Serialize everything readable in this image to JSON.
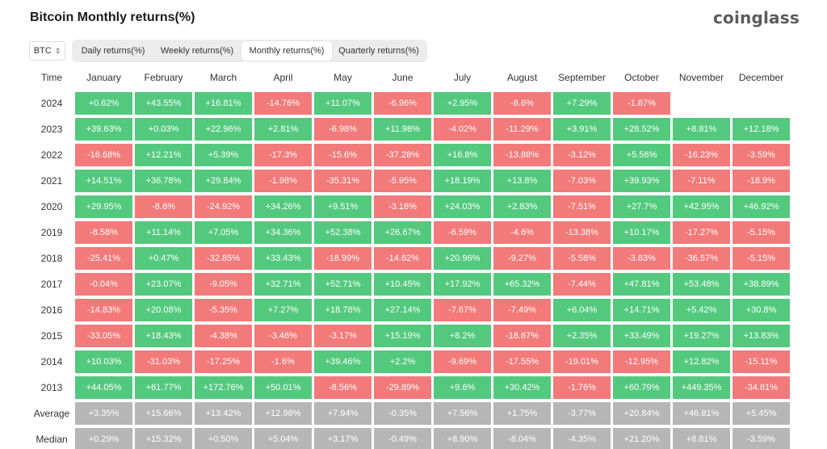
{
  "title": "Bitcoin Monthly returns(%)",
  "logo": "coinglass",
  "selector": {
    "value": "BTC"
  },
  "tabs": [
    {
      "label": "Daily returns(%)",
      "active": false
    },
    {
      "label": "Weekly returns(%)",
      "active": false
    },
    {
      "label": "Monthly returns(%)",
      "active": true
    },
    {
      "label": "Quarterly returns(%)",
      "active": false
    }
  ],
  "colors": {
    "positive": "#53c97e",
    "negative": "#f37a7a",
    "stat": "#b6b6b6"
  },
  "table": {
    "time_header": "Time",
    "months": [
      "January",
      "February",
      "March",
      "April",
      "May",
      "June",
      "July",
      "August",
      "September",
      "October",
      "November",
      "December"
    ],
    "rows": [
      {
        "year": "2024",
        "values": [
          "+0.62%",
          "+43.55%",
          "+16.81%",
          "-14.76%",
          "+11.07%",
          "-6.96%",
          "+2.95%",
          "-8.6%",
          "+7.29%",
          "-1.87%",
          "",
          ""
        ]
      },
      {
        "year": "2023",
        "values": [
          "+39.63%",
          "+0.03%",
          "+22.96%",
          "+2.81%",
          "-6.98%",
          "+11.98%",
          "-4.02%",
          "-11.29%",
          "+3.91%",
          "+28.52%",
          "+8.81%",
          "+12.18%"
        ]
      },
      {
        "year": "2022",
        "values": [
          "-16.68%",
          "+12.21%",
          "+5.39%",
          "-17.3%",
          "-15.6%",
          "-37.28%",
          "+16.8%",
          "-13.88%",
          "-3.12%",
          "+5.56%",
          "-16.23%",
          "-3.59%"
        ]
      },
      {
        "year": "2021",
        "values": [
          "+14.51%",
          "+36.78%",
          "+29.84%",
          "-1.98%",
          "-35.31%",
          "-5.95%",
          "+18.19%",
          "+13.8%",
          "-7.03%",
          "+39.93%",
          "-7.11%",
          "-18.9%"
        ]
      },
      {
        "year": "2020",
        "values": [
          "+29.95%",
          "-8.6%",
          "-24.92%",
          "+34.26%",
          "+9.51%",
          "-3.18%",
          "+24.03%",
          "+2.83%",
          "-7.51%",
          "+27.7%",
          "+42.95%",
          "+46.92%"
        ]
      },
      {
        "year": "2019",
        "values": [
          "-8.58%",
          "+11.14%",
          "+7.05%",
          "+34.36%",
          "+52.38%",
          "+26.67%",
          "-6.59%",
          "-4.6%",
          "-13.38%",
          "+10.17%",
          "-17.27%",
          "-5.15%"
        ]
      },
      {
        "year": "2018",
        "values": [
          "-25.41%",
          "+0.47%",
          "-32.85%",
          "+33.43%",
          "-18.99%",
          "-14.62%",
          "+20.96%",
          "-9.27%",
          "-5.58%",
          "-3.83%",
          "-36.57%",
          "-5.15%"
        ]
      },
      {
        "year": "2017",
        "values": [
          "-0.04%",
          "+23.07%",
          "-9.05%",
          "+32.71%",
          "+52.71%",
          "+10.45%",
          "+17.92%",
          "+65.32%",
          "-7.44%",
          "+47.81%",
          "+53.48%",
          "+38.89%"
        ]
      },
      {
        "year": "2016",
        "values": [
          "-14.83%",
          "+20.08%",
          "-5.35%",
          "+7.27%",
          "+18.78%",
          "+27.14%",
          "-7.67%",
          "-7.49%",
          "+6.04%",
          "+14.71%",
          "+5.42%",
          "+30.8%"
        ]
      },
      {
        "year": "2015",
        "values": [
          "-33.05%",
          "+18.43%",
          "-4.38%",
          "-3.46%",
          "-3.17%",
          "+15.19%",
          "+8.2%",
          "-18.67%",
          "+2.35%",
          "+33.49%",
          "+19.27%",
          "+13.83%"
        ]
      },
      {
        "year": "2014",
        "values": [
          "+10.03%",
          "-31.03%",
          "-17.25%",
          "-1.6%",
          "+39.46%",
          "+2.2%",
          "-9.69%",
          "-17.55%",
          "-19.01%",
          "-12.95%",
          "+12.82%",
          "-15.11%"
        ]
      },
      {
        "year": "2013",
        "values": [
          "+44.05%",
          "+61.77%",
          "+172.76%",
          "+50.01%",
          "-8.56%",
          "-29.89%",
          "+9.6%",
          "+30.42%",
          "-1.76%",
          "+60.79%",
          "+449.35%",
          "-34.81%"
        ]
      }
    ],
    "stats": [
      {
        "label": "Average",
        "values": [
          "+3.35%",
          "+15.66%",
          "+13.42%",
          "+12.98%",
          "+7.94%",
          "-0.35%",
          "+7.56%",
          "+1.75%",
          "-3.77%",
          "+20.84%",
          "+46.81%",
          "+5.45%"
        ]
      },
      {
        "label": "Median",
        "values": [
          "+0.29%",
          "+15.32%",
          "+0.50%",
          "+5.04%",
          "+3.17%",
          "-0.49%",
          "+8.90%",
          "-8.04%",
          "-4.35%",
          "+21.20%",
          "+8.81%",
          "-3.59%"
        ]
      }
    ]
  }
}
